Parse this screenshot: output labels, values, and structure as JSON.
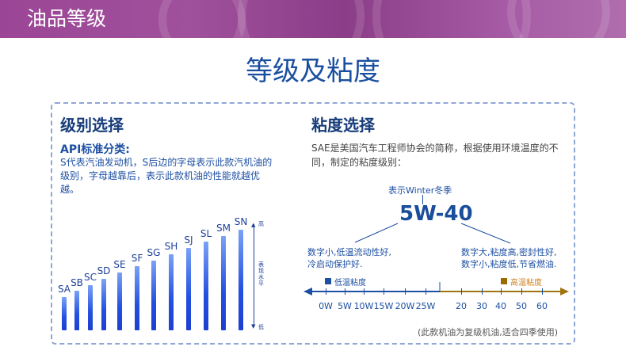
{
  "banner": {
    "title": "油品等级"
  },
  "main_title": "等级及粘度",
  "grade": {
    "heading": "级别选择",
    "subheading": "API标准分类:",
    "description": "S代表汽油发动机，S后边的字母表示此款汽机油的级别，字母越靠后，表示此款机油的性能就越优越。",
    "grades": [
      {
        "label": "SA",
        "level": 1
      },
      {
        "label": "SB",
        "level": 2
      },
      {
        "label": "SC",
        "level": 3
      },
      {
        "label": "SD",
        "level": 4
      },
      {
        "label": "SE",
        "level": 5
      },
      {
        "label": "SF",
        "level": 6
      },
      {
        "label": "SG",
        "level": 7
      },
      {
        "label": "SH",
        "level": 8
      },
      {
        "label": "SJ",
        "level": 9
      },
      {
        "label": "SL",
        "level": 10
      },
      {
        "label": "SM",
        "level": 11
      },
      {
        "label": "SN",
        "level": 12
      }
    ],
    "axis": {
      "high": "高",
      "label": "表现水平",
      "low": "低"
    }
  },
  "viscosity": {
    "heading": "粘度选择",
    "description": "SAE是美国汽车工程师协会的简称，根据使用环境温度的不同，制定的粘度级别：",
    "winter_note": "表示Winter冬季",
    "example": "5W-40",
    "left_note": [
      "数字小,低温流动性好,",
      "冷启动保护好."
    ],
    "right_note": [
      "数字大,粘度高,密封性好,",
      "数字小,粘度低,节省燃油."
    ],
    "low_temp_legend": "低温粘度",
    "high_temp_legend": "高温粘度",
    "low_ticks": [
      "0W",
      "5W",
      "10W",
      "15W",
      "20W",
      "25W"
    ],
    "high_ticks": [
      "20",
      "30",
      "40",
      "50",
      "60"
    ],
    "footnote": "(此款机油为复级机油,适合四季使用)",
    "colors": {
      "low": "#1d4fa2",
      "high": "#a0740f"
    }
  }
}
